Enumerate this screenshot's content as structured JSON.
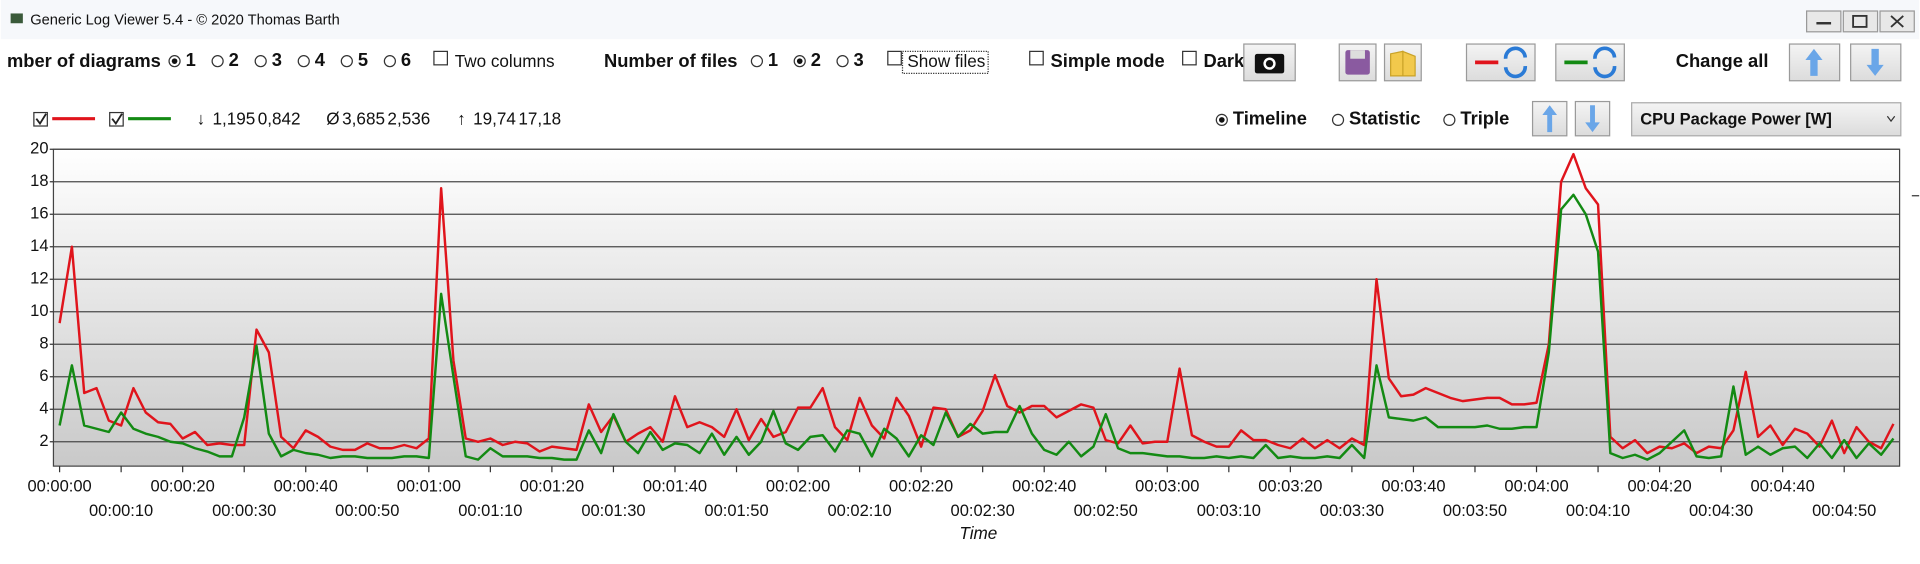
{
  "window": {
    "title": "Generic Log Viewer 5.4 - © 2020 Thomas Barth"
  },
  "toolbar": {
    "diagrams": {
      "label": "mber of diagrams",
      "options": [
        "1",
        "2",
        "3",
        "4",
        "5",
        "6"
      ],
      "selected": 0
    },
    "two_columns": "Two columns",
    "files": {
      "label": "Number of files",
      "options": [
        "1",
        "2",
        "3"
      ],
      "selected": 1
    },
    "show_files": "Show files",
    "simple_mode": "Simple mode",
    "dark": "Dark",
    "change_all": "Change all"
  },
  "stats": [
    {
      "symbol": "↓",
      "values": [
        "1,195",
        "0,842"
      ]
    },
    {
      "symbol": "Ø",
      "values": [
        "3,685",
        "2,536"
      ]
    },
    {
      "symbol": "↑",
      "values": [
        "19,74",
        "17,18"
      ]
    }
  ],
  "view": {
    "options": [
      "Timeline",
      "Statistic",
      "Triple"
    ],
    "selected": 0
  },
  "channel": "CPU Package Power [W]",
  "chart_data": {
    "type": "line",
    "x_label": "Time",
    "x": [
      0,
      2,
      4,
      6,
      8,
      10,
      12,
      14,
      16,
      18,
      20,
      22,
      24,
      26,
      28,
      30,
      32,
      34,
      36,
      38,
      40,
      42,
      44,
      46,
      48,
      50,
      52,
      54,
      56,
      58,
      60,
      62,
      64,
      66,
      68,
      70,
      72,
      74,
      76,
      78,
      80,
      82,
      84,
      86,
      88,
      90,
      92,
      94,
      96,
      98,
      100,
      102,
      104,
      106,
      108,
      110,
      112,
      114,
      116,
      118,
      120,
      122,
      124,
      126,
      128,
      130,
      132,
      134,
      136,
      138,
      140,
      142,
      144,
      146,
      148,
      150,
      152,
      154,
      156,
      158,
      160,
      162,
      164,
      166,
      168,
      170,
      172,
      174,
      176,
      178,
      180,
      182,
      184,
      186,
      188,
      190,
      192,
      194,
      196,
      198,
      200,
      202,
      204,
      206,
      208,
      210,
      212,
      214,
      216,
      218,
      220,
      222,
      224,
      226,
      228,
      230,
      232,
      234,
      236,
      238,
      240,
      242,
      244,
      246,
      248,
      250,
      252,
      254,
      256,
      258,
      260,
      262,
      264,
      266,
      268,
      270,
      272,
      274,
      276,
      278,
      280,
      282,
      284,
      286,
      288,
      290,
      292,
      294,
      296,
      298
    ],
    "xlim": [
      -1,
      299
    ],
    "xticks": [
      {
        "value": 0,
        "label": "00:00:00"
      },
      {
        "value": 10,
        "label": "00:00:10"
      },
      {
        "value": 20,
        "label": "00:00:20"
      },
      {
        "value": 30,
        "label": "00:00:30"
      },
      {
        "value": 40,
        "label": "00:00:40"
      },
      {
        "value": 50,
        "label": "00:00:50"
      },
      {
        "value": 60,
        "label": "00:01:00"
      },
      {
        "value": 70,
        "label": "00:01:10"
      },
      {
        "value": 80,
        "label": "00:01:20"
      },
      {
        "value": 90,
        "label": "00:01:30"
      },
      {
        "value": 100,
        "label": "00:01:40"
      },
      {
        "value": 110,
        "label": "00:01:50"
      },
      {
        "value": 120,
        "label": "00:02:00"
      },
      {
        "value": 130,
        "label": "00:02:10"
      },
      {
        "value": 140,
        "label": "00:02:20"
      },
      {
        "value": 150,
        "label": "00:02:30"
      },
      {
        "value": 160,
        "label": "00:02:40"
      },
      {
        "value": 170,
        "label": "00:02:50"
      },
      {
        "value": 180,
        "label": "00:03:00"
      },
      {
        "value": 190,
        "label": "00:03:10"
      },
      {
        "value": 200,
        "label": "00:03:20"
      },
      {
        "value": 210,
        "label": "00:03:30"
      },
      {
        "value": 220,
        "label": "00:03:40"
      },
      {
        "value": 230,
        "label": "00:03:50"
      },
      {
        "value": 240,
        "label": "00:04:00"
      },
      {
        "value": 250,
        "label": "00:04:10"
      },
      {
        "value": 260,
        "label": "00:04:20"
      },
      {
        "value": 270,
        "label": "00:04:30"
      },
      {
        "value": 280,
        "label": "00:04:40"
      },
      {
        "value": 290,
        "label": "00:04:50"
      }
    ],
    "ylim": [
      0.5,
      20
    ],
    "yticks": [
      2,
      4,
      6,
      8,
      10,
      12,
      14,
      16,
      18,
      20
    ],
    "grid": true,
    "series": [
      {
        "color": "#e0141c",
        "values": [
          9.3,
          14,
          5,
          5.3,
          3.3,
          3.0,
          5.3,
          3.8,
          3.2,
          3.1,
          2.2,
          2.6,
          1.8,
          1.9,
          1.8,
          1.8,
          8.9,
          7.5,
          2.3,
          1.6,
          2.7,
          2.3,
          1.7,
          1.5,
          1.5,
          1.9,
          1.6,
          1.6,
          1.8,
          1.6,
          2.2,
          17.6,
          7.0,
          2.2,
          2.0,
          2.2,
          1.8,
          2.0,
          1.9,
          1.4,
          1.7,
          1.6,
          1.5,
          4.3,
          2.6,
          3.6,
          2.0,
          2.5,
          2.9,
          2.0,
          4.8,
          2.9,
          3.2,
          2.9,
          2.3,
          4.0,
          2.1,
          3.4,
          2.3,
          2.6,
          4.1,
          4.1,
          5.3,
          2.9,
          2.1,
          4.7,
          3.0,
          2.2,
          4.7,
          3.6,
          1.7,
          4.1,
          4.0,
          2.3,
          2.7,
          3.9,
          6.1,
          4.2,
          3.8,
          4.2,
          4.2,
          3.5,
          3.9,
          4.3,
          4.1,
          2.1,
          1.9,
          3.0,
          1.9,
          2.0,
          2.0,
          6.5,
          2.4,
          2.0,
          1.7,
          1.7,
          2.7,
          2.1,
          2.1,
          1.8,
          1.6,
          2.2,
          1.6,
          2.1,
          1.6,
          2.2,
          1.8,
          12,
          5.9,
          4.8,
          4.9,
          5.3,
          5.0,
          4.7,
          4.5,
          4.6,
          4.7,
          4.7,
          4.3,
          4.3,
          4.4,
          8,
          18,
          19.7,
          17.6,
          16.6,
          2.3,
          1.6,
          2.1,
          1.3,
          1.7,
          1.6,
          1.9,
          1.3,
          1.7,
          1.6,
          2.7,
          6.3,
          2.3,
          3.0,
          1.8,
          2.8,
          2.5,
          1.7,
          3.3,
          1.3,
          2.9,
          2.0,
          1.6,
          3.1
        ]
      },
      {
        "color": "#138a13",
        "values": [
          3,
          6.7,
          3,
          2.8,
          2.6,
          3.8,
          2.8,
          2.5,
          2.3,
          2.0,
          1.9,
          1.6,
          1.4,
          1.1,
          1.1,
          3.5,
          7.9,
          2.5,
          1.1,
          1.5,
          1.3,
          1.2,
          1.0,
          1.1,
          1.1,
          1.0,
          1.0,
          1.0,
          1.1,
          1.1,
          1.0,
          11.1,
          6.0,
          1.1,
          0.9,
          1.6,
          1.1,
          1.1,
          1.1,
          1.0,
          1.0,
          0.9,
          0.9,
          2.7,
          1.3,
          3.7,
          2.0,
          1.3,
          2.6,
          1.5,
          1.9,
          1.8,
          1.3,
          2.5,
          1.2,
          2.3,
          1.2,
          2.0,
          3.9,
          1.9,
          1.5,
          2.3,
          2.4,
          1.4,
          2.7,
          2.5,
          1.1,
          2.8,
          2.2,
          1.1,
          2.4,
          1.8,
          3.8,
          2.3,
          3.1,
          2.5,
          2.6,
          2.6,
          4.2,
          2.5,
          1.5,
          1.2,
          2.0,
          1.1,
          1.7,
          3.7,
          1.6,
          1.3,
          1.3,
          1.2,
          1.1,
          1.1,
          1.0,
          1.0,
          1.1,
          1.0,
          1.1,
          1.0,
          1.8,
          1.0,
          1.1,
          1.0,
          1.0,
          1.1,
          1.0,
          1.8,
          1.0,
          6.7,
          3.5,
          3.4,
          3.3,
          3.5,
          2.9,
          2.9,
          2.9,
          2.9,
          3.0,
          2.8,
          2.8,
          2.9,
          2.9,
          7.5,
          16.3,
          17.2,
          16.0,
          13.7,
          1.3,
          1.0,
          1.2,
          0.9,
          1.3,
          2.0,
          2.7,
          1.1,
          1.0,
          1.1,
          5.4,
          1.2,
          1.7,
          1.2,
          1.6,
          1.7,
          1.0,
          1.9,
          1.0,
          2.1,
          1.0,
          1.9,
          1.2,
          2.2
        ]
      }
    ]
  }
}
